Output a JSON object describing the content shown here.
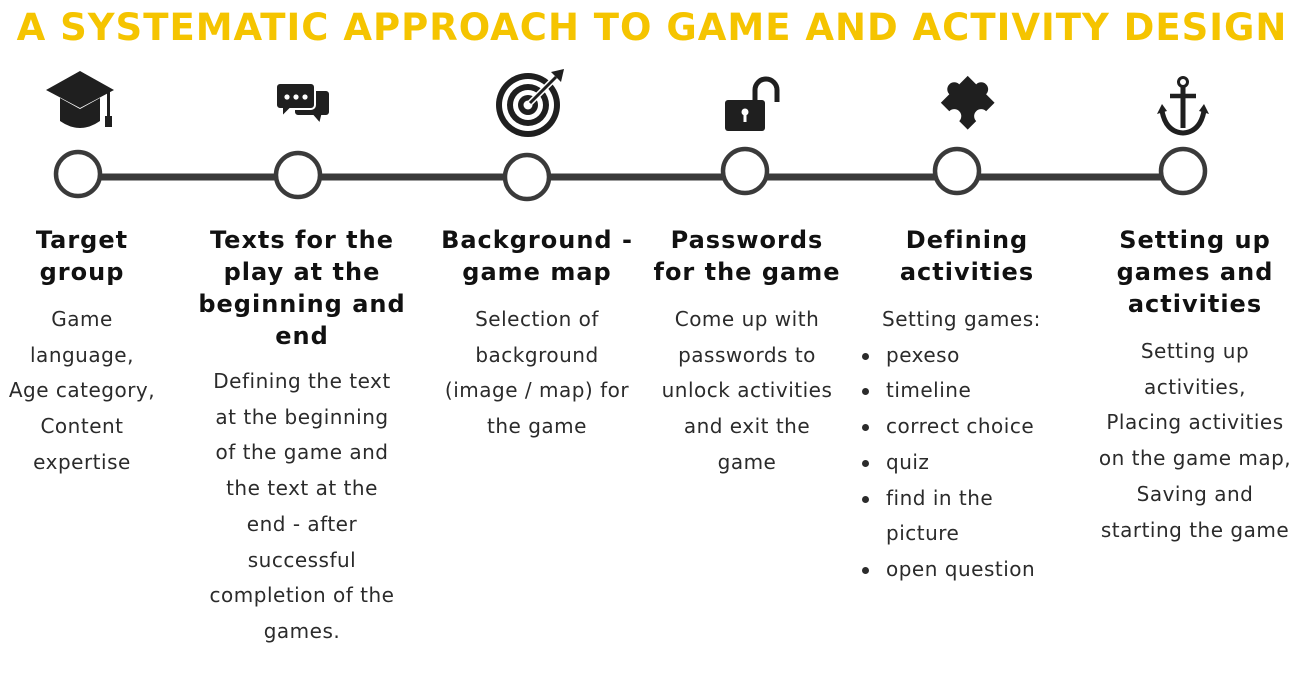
{
  "title": "A SYSTEMATIC APPROACH TO GAME AND ACTIVITY DESIGN",
  "colors": {
    "title": "#f5c400",
    "line": "#3a3a3a",
    "icon": "#1f1f1f"
  },
  "steps": [
    {
      "icon": "graduation-cap-icon",
      "heading": "Target group",
      "lines": [
        "Game",
        "language,",
        "Age category,",
        "Content",
        "expertise"
      ]
    },
    {
      "icon": "chat-bubbles-icon",
      "heading": "Texts for the play at the beginning and end",
      "lines": [
        "Defining the text",
        "at the beginning",
        "of the game and",
        "the text at the",
        "end - after",
        "successful",
        "completion of the",
        "games."
      ]
    },
    {
      "icon": "target-icon",
      "heading": "Background - game map",
      "lines": [
        "Selection of",
        "background",
        "(image / map) for",
        "the game"
      ]
    },
    {
      "icon": "unlocked-padlock-icon",
      "heading": "Passwords for the game",
      "lines": [
        "Come up with",
        "passwords to",
        "unlock activities",
        "and exit the",
        "game"
      ]
    },
    {
      "icon": "puzzle-piece-icon",
      "heading": "Defining activities",
      "intro": "Setting games:",
      "bullets": [
        "pexeso",
        "timeline",
        "correct choice",
        "quiz",
        "find in the picture",
        "open question"
      ]
    },
    {
      "icon": "anchor-icon",
      "heading": "Setting up games and activities",
      "lines": [
        "Setting up",
        "activities,",
        "Placing activities",
        "on the game map,",
        "Saving and",
        "starting the game"
      ]
    }
  ]
}
